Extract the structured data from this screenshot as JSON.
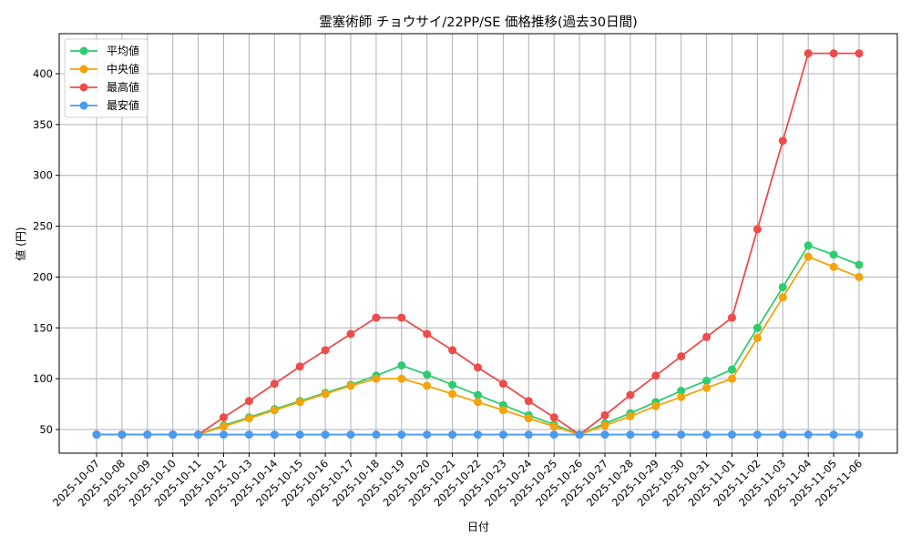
{
  "chart_data": {
    "type": "line",
    "title": "霊塞術師 チョウサイ/22PP/SE 価格推移(過去30日間)",
    "xlabel": "日付",
    "ylabel": "値 (円)",
    "ylim": [
      27,
      438
    ],
    "yticks": [
      50,
      100,
      150,
      200,
      250,
      300,
      350,
      400
    ],
    "grid": true,
    "legend_position": "upper left",
    "categories": [
      "2025-10-07",
      "2025-10-08",
      "2025-10-09",
      "2025-10-10",
      "2025-10-11",
      "2025-10-12",
      "2025-10-13",
      "2025-10-14",
      "2025-10-15",
      "2025-10-16",
      "2025-10-17",
      "2025-10-18",
      "2025-10-19",
      "2025-10-20",
      "2025-10-21",
      "2025-10-22",
      "2025-10-23",
      "2025-10-24",
      "2025-10-25",
      "2025-10-26",
      "2025-10-27",
      "2025-10-28",
      "2025-10-29",
      "2025-10-30",
      "2025-10-31",
      "2025-11-01",
      "2025-11-02",
      "2025-11-03",
      "2025-11-04",
      "2025-11-05",
      "2025-11-06"
    ],
    "series": [
      {
        "name": "平均値",
        "color": "#2ecc71",
        "values": [
          45,
          45,
          45,
          45,
          45,
          54,
          62,
          70,
          78,
          86,
          94,
          103,
          113,
          104,
          94,
          84,
          74,
          64,
          55,
          45,
          56,
          66,
          77,
          88,
          98,
          109,
          150,
          190,
          231,
          222,
          212
        ]
      },
      {
        "name": "中央値",
        "color": "#f5a30a",
        "values": [
          45,
          45,
          45,
          45,
          45,
          53,
          61,
          69,
          77,
          85,
          93,
          100,
          100,
          93,
          85,
          77,
          69,
          61,
          53,
          45,
          54,
          63,
          73,
          82,
          91,
          100,
          140,
          180,
          220,
          210,
          200
        ]
      },
      {
        "name": "最高値",
        "color": "#ef4b4b",
        "values": [
          45,
          45,
          45,
          45,
          45,
          62,
          78,
          95,
          112,
          128,
          144,
          160,
          160,
          144,
          128,
          111,
          95,
          78,
          62,
          45,
          64,
          84,
          103,
          122,
          141,
          160,
          247,
          334,
          420,
          420,
          420
        ]
      },
      {
        "name": "最安値",
        "color": "#4a9af0",
        "values": [
          45,
          45,
          45,
          45,
          45,
          45,
          45,
          45,
          45,
          45,
          45,
          45,
          45,
          45,
          45,
          45,
          45,
          45,
          45,
          45,
          45,
          45,
          45,
          45,
          45,
          45,
          45,
          45,
          45,
          45,
          45
        ]
      }
    ]
  }
}
